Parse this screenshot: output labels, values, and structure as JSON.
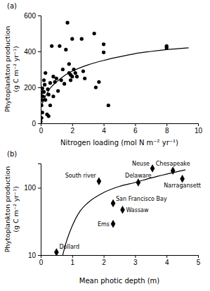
{
  "chart_data": [
    {
      "type": "scatter",
      "title": "(a)",
      "xlabel": "Nitrogen loading (mol N m⁻² yr⁻¹)",
      "ylabel": [
        "Phytoplankton production",
        "(g C m⁻² yr⁻¹)"
      ],
      "xlim": [
        0,
        10
      ],
      "ylim": [
        0,
        600
      ],
      "xticks": [
        0,
        2,
        4,
        6,
        8,
        10
      ],
      "yticks": [
        0,
        200,
        400,
        600
      ],
      "series": [
        {
          "type": "scatter",
          "marker": "circle",
          "color": "#000000",
          "x": [
            0.0,
            0.05,
            0.1,
            0.05,
            0.1,
            0.15,
            0.0,
            0.2,
            0.1,
            0.25,
            0.2,
            0.3,
            0.15,
            0.3,
            0.4,
            0.5,
            0.5,
            0.6,
            0.45,
            0.6,
            0.7,
            0.8,
            0.8,
            0.9,
            1.0,
            1.1,
            1.2,
            1.3,
            1.4,
            1.5,
            1.6,
            1.7,
            1.8,
            1.8,
            1.9,
            1.9,
            2.0,
            2.0,
            2.1,
            2.2,
            2.3,
            2.6,
            2.7,
            2.8,
            3.4,
            3.5,
            3.7,
            4.0,
            4.0,
            4.3,
            8.0,
            8.0
          ],
          "values": [
            10,
            30,
            60,
            100,
            130,
            150,
            160,
            175,
            195,
            215,
            240,
            280,
            175,
            130,
            50,
            40,
            160,
            100,
            190,
            225,
            430,
            150,
            260,
            230,
            250,
            180,
            430,
            240,
            300,
            220,
            410,
            560,
            330,
            280,
            240,
            270,
            470,
            260,
            300,
            280,
            260,
            470,
            290,
            250,
            500,
            200,
            230,
            440,
            395,
            100,
            430,
            420
          ]
        },
        {
          "type": "line",
          "line_style": "solid",
          "color": "#000000",
          "x": [
            0.05,
            0.3,
            0.6,
            1.0,
            1.5,
            2.0,
            3.0,
            4.0,
            5.0,
            6.0,
            7.0,
            8.0,
            9.4
          ],
          "values": [
            100,
            150,
            195,
            230,
            265,
            290,
            325,
            350,
            370,
            388,
            400,
            410,
            420
          ]
        }
      ]
    },
    {
      "type": "scatter",
      "title": "(b)",
      "log": "y",
      "xlabel": "Mean photic depth (m)",
      "ylabel": [
        "Phytoplankton production",
        "(g C m⁻² yr⁻¹)"
      ],
      "xlim": [
        0,
        5
      ],
      "ylim": [
        10,
        230
      ],
      "xticks": [
        0,
        1,
        2,
        3,
        4,
        5
      ],
      "yticks": [
        10,
        100
      ],
      "series": [
        {
          "type": "scatter",
          "marker": "diamond",
          "color": "#000000",
          "labels": [
            "Dollard",
            "South river",
            "San Francisco Bay",
            "Wassaw",
            "Ems",
            "Delaware",
            "Neuse",
            "Chesapeake",
            "Narragansett"
          ],
          "x": [
            0.5,
            1.85,
            2.3,
            2.6,
            2.3,
            3.1,
            3.55,
            4.2,
            4.5
          ],
          "values": [
            11,
            125,
            59,
            47,
            29,
            120,
            194,
            180,
            136
          ]
        },
        {
          "type": "line",
          "line_style": "solid",
          "color": "#000000",
          "x": [
            0.7,
            0.8,
            1.0,
            1.25,
            1.5,
            2.0,
            2.5,
            3.0,
            3.5,
            4.0,
            4.6
          ],
          "values": [
            10,
            15,
            27,
            45,
            60,
            85,
            105,
            120,
            140,
            160,
            185
          ]
        }
      ]
    }
  ]
}
